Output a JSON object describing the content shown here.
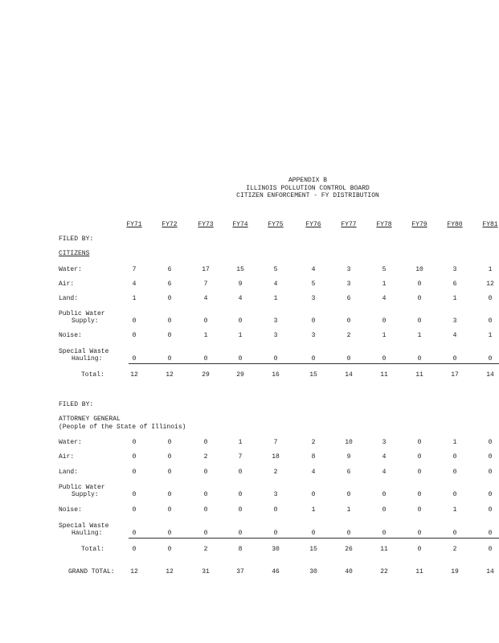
{
  "header": {
    "lines": [
      "APPENDIX B",
      "ILLINOIS POLLUTION CONTROL BOARD",
      "CITIZEN ENFORCEMENT - FY DISTRIBUTION"
    ]
  },
  "table": {
    "columns": [
      "FY71",
      "FY72",
      "FY73",
      "FY74",
      "FY75",
      "FY76",
      "FY77",
      "FY78",
      "FY79",
      "FY80",
      "FY81"
    ],
    "sections": [
      {
        "filed_by": "FILED BY:",
        "heading": "CITIZENS",
        "rows": [
          {
            "label": [
              "Water:"
            ],
            "values": [
              7,
              6,
              17,
              15,
              5,
              4,
              3,
              5,
              10,
              3,
              1
            ]
          },
          {
            "label": [
              "Air:"
            ],
            "values": [
              4,
              6,
              7,
              9,
              4,
              5,
              3,
              1,
              0,
              6,
              12
            ]
          },
          {
            "label": [
              "Land:"
            ],
            "values": [
              1,
              0,
              4,
              4,
              1,
              3,
              6,
              4,
              0,
              1,
              0
            ]
          },
          {
            "label": [
              "Public Water",
              "Supply:"
            ],
            "values": [
              0,
              0,
              0,
              0,
              3,
              0,
              0,
              0,
              0,
              3,
              0
            ]
          },
          {
            "label": [
              "Noise:"
            ],
            "values": [
              0,
              0,
              1,
              1,
              3,
              3,
              2,
              1,
              1,
              4,
              1
            ]
          },
          {
            "label": [
              "Special Waste",
              "Hauling:"
            ],
            "values": [
              0,
              0,
              0,
              0,
              0,
              0,
              0,
              0,
              0,
              0,
              0
            ]
          }
        ],
        "total_label": "Total:",
        "totals": [
          12,
          12,
          29,
          29,
          16,
          15,
          14,
          11,
          11,
          17,
          14
        ]
      },
      {
        "filed_by": "FILED BY:",
        "heading": "ATTORNEY GENERAL",
        "subheading": "(People of the State of Illinois)",
        "rows": [
          {
            "label": [
              "Water:"
            ],
            "values": [
              0,
              0,
              0,
              1,
              7,
              2,
              10,
              3,
              0,
              1,
              0
            ]
          },
          {
            "label": [
              "Air:"
            ],
            "values": [
              0,
              0,
              2,
              7,
              18,
              8,
              9,
              4,
              0,
              0,
              0
            ]
          },
          {
            "label": [
              "Land:"
            ],
            "values": [
              0,
              0,
              0,
              0,
              2,
              4,
              6,
              4,
              0,
              0,
              0
            ]
          },
          {
            "label": [
              "Public Water",
              "Supply:"
            ],
            "values": [
              0,
              0,
              0,
              0,
              3,
              0,
              0,
              0,
              0,
              0,
              0
            ]
          },
          {
            "label": [
              "Noise:"
            ],
            "values": [
              0,
              0,
              0,
              0,
              0,
              1,
              1,
              0,
              0,
              1,
              0
            ]
          },
          {
            "label": [
              "Special Waste",
              "Hauling:"
            ],
            "values": [
              0,
              0,
              0,
              0,
              0,
              0,
              0,
              0,
              0,
              0,
              0
            ]
          }
        ],
        "total_label": "Total:",
        "totals": [
          0,
          0,
          2,
          8,
          30,
          15,
          26,
          11,
          0,
          2,
          0
        ]
      }
    ],
    "grand_total": {
      "label": "GRAND TOTAL:",
      "values": [
        12,
        12,
        31,
        37,
        46,
        30,
        40,
        22,
        11,
        19,
        14
      ]
    }
  }
}
